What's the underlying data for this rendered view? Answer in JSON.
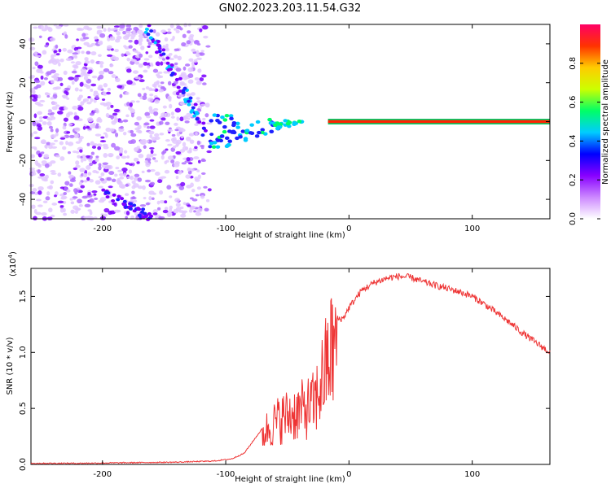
{
  "title": "GN02.2023.203.11.54.G32",
  "colors": {
    "line": "#ee3333",
    "colorbar": [
      "#ffffff",
      "#cc88ff",
      "#8800ff",
      "#0000ff",
      "#00ccff",
      "#00ff66",
      "#ccff00",
      "#ffcc00",
      "#ff3300",
      "#ff0066"
    ]
  },
  "chart_data": [
    {
      "type": "heatmap",
      "name": "spectrogram",
      "xlabel": "Height of straight line (km)",
      "ylabel": "Frequency (Hz)",
      "xlim": [
        -258,
        163
      ],
      "ylim": [
        -50,
        50
      ],
      "xticks": [
        -200,
        -100,
        0,
        100
      ],
      "yticks": [
        -40,
        -20,
        0,
        20,
        40
      ],
      "colorbar": {
        "label": "Normalized spectral amplitude",
        "range": [
          0.0,
          1.0
        ],
        "ticks": [
          "0.0",
          "0.2",
          "0.4",
          "0.6",
          "0.8"
        ]
      },
      "features": [
        {
          "label": "carrier line",
          "x": [
            -17,
            163
          ],
          "freq_hz": 0,
          "amplitude": 1.0
        },
        {
          "label": "descending branch",
          "x": [
            -165,
            -115
          ],
          "freq_hz": [
            50,
            -10
          ],
          "amplitude": 0.3
        },
        {
          "label": "converging branch",
          "x": [
            -110,
            -40
          ],
          "freq_hz": [
            -10,
            0
          ],
          "amplitude": 0.35
        }
      ]
    },
    {
      "type": "line",
      "name": "snr",
      "xlabel": "Height of straight line (km)",
      "ylabel": "SNR (10 * v/v)",
      "y_scale_label": "(x10",
      "y_scale_exp": "4",
      "xlim": [
        -258,
        163
      ],
      "ylim": [
        0.0,
        1.75
      ],
      "xticks": [
        -200,
        -100,
        0,
        100
      ],
      "yticks": [
        "0.0",
        "0.5",
        "1.0",
        "1.5"
      ],
      "x": [
        -258,
        -220,
        -180,
        -140,
        -110,
        -95,
        -85,
        -75,
        -65,
        -55,
        -45,
        -35,
        -28,
        -22,
        -15,
        -10,
        -5,
        0,
        10,
        20,
        30,
        40,
        50,
        60,
        70,
        80,
        90,
        100,
        110,
        120,
        130,
        140,
        150,
        163
      ],
      "y": [
        0.01,
        0.01,
        0.015,
        0.02,
        0.03,
        0.05,
        0.1,
        0.25,
        0.4,
        0.5,
        0.55,
        0.6,
        0.65,
        0.9,
        1.2,
        1.3,
        1.3,
        1.4,
        1.55,
        1.62,
        1.66,
        1.68,
        1.67,
        1.63,
        1.6,
        1.57,
        1.54,
        1.5,
        1.43,
        1.35,
        1.27,
        1.18,
        1.1,
        1.0
      ]
    }
  ]
}
